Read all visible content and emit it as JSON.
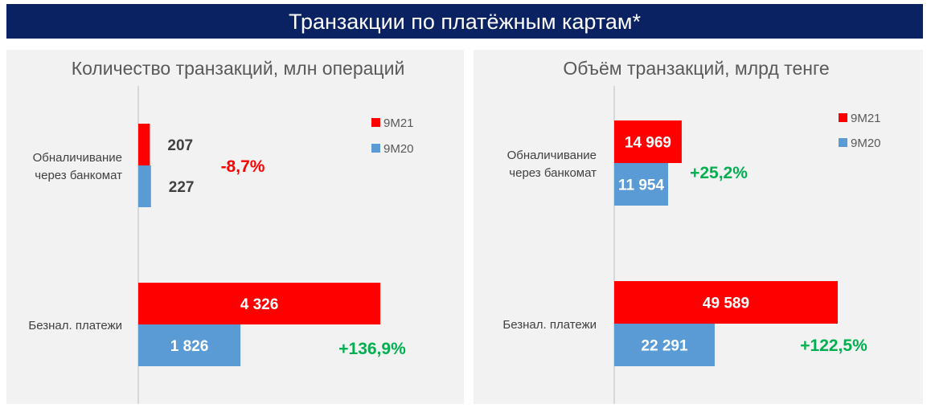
{
  "header": {
    "title": "Транзакции по платёжным картам*"
  },
  "colors": {
    "header_bg": "#0b2262",
    "panel_bg": "#f2f2f2",
    "series_9M21": "#ff0000",
    "series_9M20": "#5b9bd5",
    "negative": "#ff0000",
    "positive": "#00b050",
    "axis": "#d0d0d0",
    "text": "#595959"
  },
  "chart_data": [
    {
      "type": "bar",
      "orientation": "horizontal",
      "title": "Количество транзакций, млн операций",
      "categories": [
        "Обналичивание\nчерез банкомат",
        "Безнал. платежи"
      ],
      "category_lines": [
        [
          "Обналичивание",
          "через банкомат"
        ],
        [
          "Безнал. платежи"
        ]
      ],
      "series": [
        {
          "name": "9M21",
          "values": [
            207,
            4326
          ],
          "labels": [
            "207",
            "4 326"
          ]
        },
        {
          "name": "9M20",
          "values": [
            227,
            1826
          ],
          "labels": [
            "227",
            "1 826"
          ]
        }
      ],
      "changes": [
        "-8,7%",
        "+136,9%"
      ],
      "change_signs": [
        "negative",
        "positive"
      ],
      "xlim": [
        0,
        5460
      ],
      "legend": "top-right",
      "grid": false
    },
    {
      "type": "bar",
      "orientation": "horizontal",
      "title": "Объём транзакций, млрд тенге",
      "categories": [
        "Обналичивание\nчерез банкомат",
        "Безнал. платежи"
      ],
      "category_lines": [
        [
          "Обналичивание",
          "через банкомат"
        ],
        [
          "Безнал. платежи"
        ]
      ],
      "series": [
        {
          "name": "9M21",
          "values": [
            14969,
            49589
          ],
          "labels": [
            "14 969",
            "49 589"
          ]
        },
        {
          "name": "9M20",
          "values": [
            11954,
            22291
          ],
          "labels": [
            "11 954",
            "22 291"
          ]
        }
      ],
      "changes": [
        "+25,2%",
        "+122,5%"
      ],
      "change_signs": [
        "positive",
        "positive"
      ],
      "xlim": [
        0,
        66000
      ],
      "legend": "top-right",
      "grid": false
    }
  ]
}
